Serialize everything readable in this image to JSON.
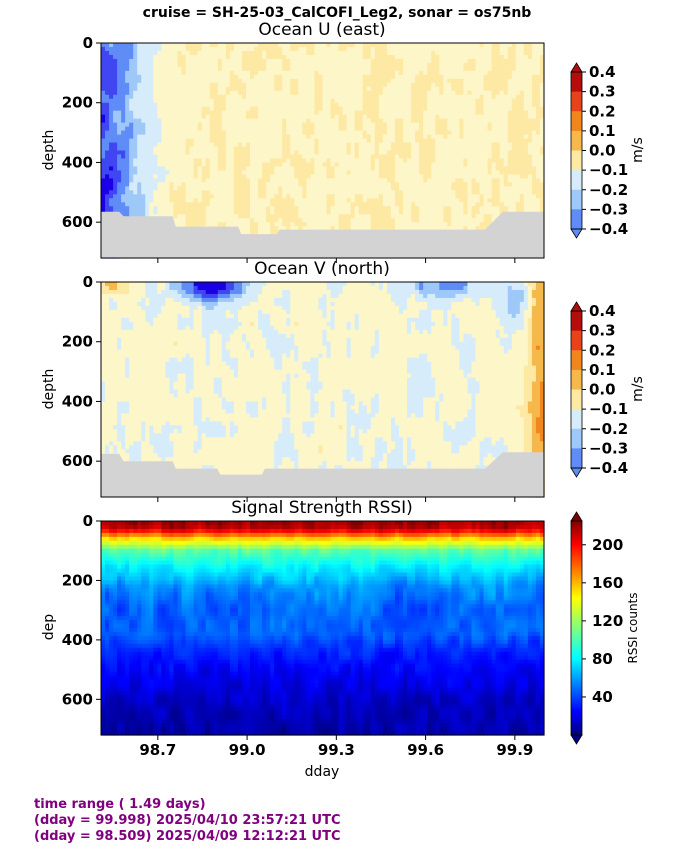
{
  "suptitle": "cruise = SH-25-03_CalCOFI_Leg2,  sonar = os75nb",
  "colors": {
    "ground": "#d3d3d3",
    "info_text": "#800080",
    "velocity_levels": [
      "#1a00e6",
      "#3f46f2",
      "#5f8cf7",
      "#9ec8f7",
      "#d6ecfb",
      "#fdf6c9",
      "#fde9a3",
      "#f6b84a",
      "#f0861c",
      "#e8421a",
      "#b50d0d"
    ]
  },
  "chart_data": [
    {
      "type": "heatmap",
      "title": "Ocean U (east)",
      "xlabel": "",
      "ylabel": "depth",
      "xlim": [
        98.509,
        99.998
      ],
      "ylim": [
        720,
        0
      ],
      "yticks": [
        0,
        200,
        400,
        600
      ],
      "xticks": [
        98.7,
        99.0,
        99.3,
        99.6,
        99.9
      ],
      "colorbar": {
        "label": "m/s",
        "min": -0.4,
        "max": 0.4,
        "ticks": [
          "0.4",
          "0.3",
          "0.2",
          "0.1",
          "0.0",
          "−0.1",
          "−0.2",
          "−0.3",
          "−0.4"
        ]
      },
      "bottom_depth": [
        [
          98.509,
          565
        ],
        [
          98.57,
          565
        ],
        [
          98.585,
          580
        ],
        [
          98.75,
          580
        ],
        [
          98.76,
          615
        ],
        [
          98.97,
          615
        ],
        [
          98.98,
          640
        ],
        [
          99.1,
          640
        ],
        [
          99.11,
          625
        ],
        [
          99.8,
          625
        ],
        [
          99.86,
          565
        ],
        [
          99.998,
          565
        ]
      ]
    },
    {
      "type": "heatmap",
      "title": "Ocean V (north)",
      "xlabel": "",
      "ylabel": "depth",
      "xlim": [
        98.509,
        99.998
      ],
      "ylim": [
        720,
        0
      ],
      "yticks": [
        0,
        200,
        400,
        600
      ],
      "xticks": [
        98.7,
        99.0,
        99.3,
        99.6,
        99.9
      ],
      "colorbar": {
        "label": "m/s",
        "min": -0.4,
        "max": 0.4,
        "ticks": [
          "0.4",
          "0.3",
          "0.2",
          "0.1",
          "0.0",
          "−0.1",
          "−0.2",
          "−0.3",
          "−0.4"
        ]
      },
      "bottom_depth": [
        [
          98.509,
          575
        ],
        [
          98.57,
          575
        ],
        [
          98.585,
          600
        ],
        [
          98.75,
          600
        ],
        [
          98.76,
          625
        ],
        [
          98.9,
          625
        ],
        [
          98.91,
          645
        ],
        [
          99.05,
          645
        ],
        [
          99.06,
          625
        ],
        [
          99.8,
          625
        ],
        [
          99.86,
          570
        ],
        [
          99.998,
          570
        ]
      ]
    },
    {
      "type": "heatmap",
      "title": "Signal Strength RSSI)",
      "xlabel": "dday",
      "ylabel": "dep",
      "xlim": [
        98.509,
        99.998
      ],
      "ylim": [
        720,
        0
      ],
      "yticks": [
        0,
        200,
        400,
        600
      ],
      "xticks": [
        98.7,
        99.0,
        99.3,
        99.6,
        99.9
      ],
      "xtick_labels": [
        "98.7",
        "99.0",
        "99.3",
        "99.6",
        "99.9"
      ],
      "colorbar": {
        "label": "RSSI counts",
        "min": 0,
        "max": 225,
        "ticks": [
          "200",
          "160",
          "120",
          "80",
          "40"
        ]
      },
      "depth_profile": [
        [
          0,
          215
        ],
        [
          25,
          205
        ],
        [
          60,
          150
        ],
        [
          100,
          105
        ],
        [
          150,
          85
        ],
        [
          220,
          65
        ],
        [
          300,
          55
        ],
        [
          380,
          50
        ],
        [
          440,
          35
        ],
        [
          520,
          25
        ],
        [
          620,
          15
        ],
        [
          720,
          8
        ]
      ]
    }
  ],
  "info": {
    "line1": "time range ( 1.49 days)",
    "line2": "(dday = 99.998) 2025/04/10 23:57:21 UTC",
    "line3": "(dday = 98.509) 2025/04/09 12:12:21 UTC"
  }
}
